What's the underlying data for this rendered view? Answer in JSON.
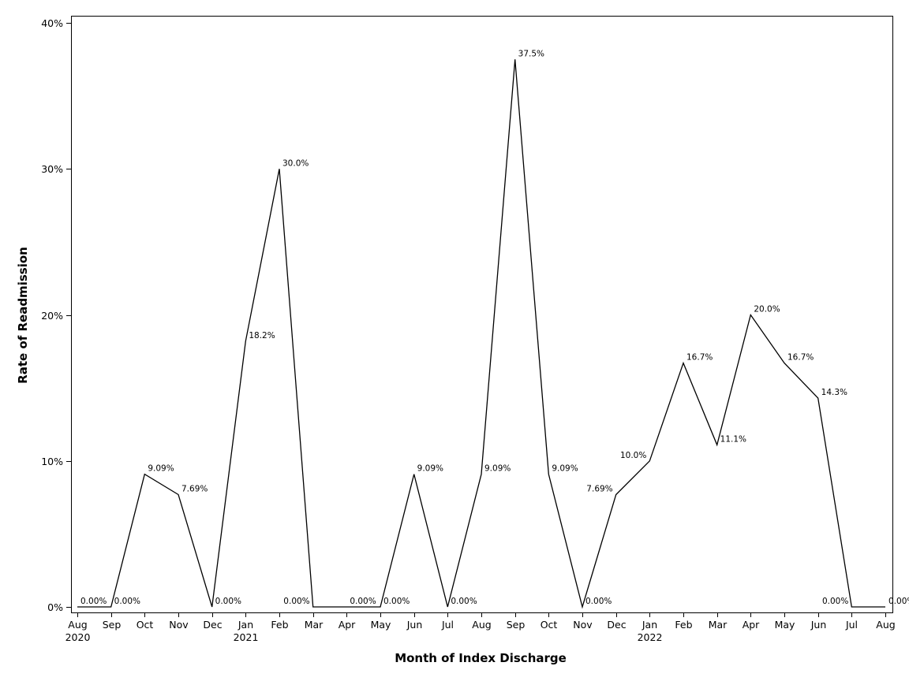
{
  "chart_data": {
    "type": "line",
    "title": "",
    "xlabel": "Month of Index Discharge",
    "ylabel": "Rate of Readmission",
    "x": [
      "2020-08",
      "2020-09",
      "2020-10",
      "2020-11",
      "2020-12",
      "2021-01",
      "2021-02",
      "2021-03",
      "2021-04",
      "2021-05",
      "2021-06",
      "2021-07",
      "2021-08",
      "2021-09",
      "2021-10",
      "2021-11",
      "2021-12",
      "2022-01",
      "2022-02",
      "2022-03",
      "2022-04",
      "2022-05",
      "2022-06",
      "2022-07",
      "2022-08"
    ],
    "x_tick_labels": [
      "Aug",
      "Sep",
      "Oct",
      "Nov",
      "Dec",
      "Jan",
      "Feb",
      "Mar",
      "Apr",
      "May",
      "Jun",
      "Jul",
      "Aug",
      "Sep",
      "Oct",
      "Nov",
      "Dec",
      "Jan",
      "Feb",
      "Mar",
      "Apr",
      "May",
      "Jun",
      "Jul",
      "Aug"
    ],
    "year_labels": [
      {
        "month": "2020-08",
        "label": "2020"
      },
      {
        "month": "2021-01",
        "label": "2021"
      },
      {
        "month": "2022-01",
        "label": "2022"
      }
    ],
    "series": [
      {
        "values": [
          0,
          0,
          9.09,
          7.69,
          0,
          18.2,
          30.0,
          0,
          0,
          0,
          9.09,
          0,
          9.09,
          37.5,
          9.09,
          0,
          7.69,
          10.0,
          16.7,
          11.1,
          20.0,
          16.7,
          14.3,
          0,
          0
        ],
        "labels": [
          "0.00%",
          "0.00%",
          "9.09%",
          "7.69%",
          "0.00%",
          "18.2%",
          "30.0%",
          "0.00%",
          "0.00%",
          "0.00%",
          "9.09%",
          "0.00%",
          "9.09%",
          "37.5%",
          "9.09%",
          "0.00%",
          "7.69%",
          "10.0%",
          "16.7%",
          "11.1%",
          "20.0%",
          "16.7%",
          "14.3%",
          "0.00%",
          "0.00%"
        ],
        "label_side": [
          "right",
          "right",
          "right",
          "right",
          "right",
          "right",
          "right",
          "left",
          "right",
          "right",
          "right",
          "right",
          "right",
          "right",
          "right",
          "right",
          "left",
          "left",
          "right",
          "right",
          "right",
          "right",
          "right",
          "left",
          "right"
        ]
      }
    ],
    "y_ticks": [
      0,
      10,
      20,
      30,
      40
    ],
    "y_tick_labels": [
      "0%",
      "10%",
      "20%",
      "30%",
      "40%"
    ],
    "ylim": [
      0,
      40
    ],
    "grid": false,
    "line_color": "#000000"
  }
}
